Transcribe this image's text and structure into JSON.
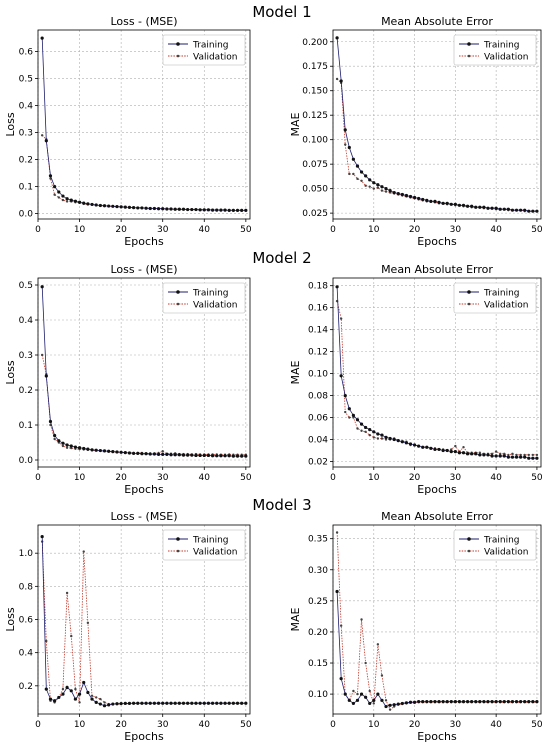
{
  "models": [
    {
      "title": "Model 1"
    },
    {
      "title": "Model 2"
    },
    {
      "title": "Model 3"
    }
  ],
  "colors": {
    "training": "#1f1f6e",
    "validation": "#c0392b"
  },
  "chart_data": [
    {
      "type": "line",
      "model": "Model 1",
      "title": "Loss - (MSE)",
      "xlabel": "Epochs",
      "ylabel": "Loss",
      "xlim": [
        0,
        51
      ],
      "ylim": [
        -0.02,
        0.68
      ],
      "xticks": [
        0,
        10,
        20,
        30,
        40,
        50
      ],
      "yticks": [
        0.0,
        0.1,
        0.2,
        0.3,
        0.4,
        0.5,
        0.6
      ],
      "ytick_decimals": 1,
      "legend": "top-right",
      "grid": true,
      "x": [
        1,
        2,
        3,
        4,
        5,
        6,
        7,
        8,
        9,
        10,
        11,
        12,
        13,
        14,
        15,
        16,
        17,
        18,
        19,
        20,
        21,
        22,
        23,
        24,
        25,
        26,
        27,
        28,
        29,
        30,
        31,
        32,
        33,
        34,
        35,
        36,
        37,
        38,
        39,
        40,
        41,
        42,
        43,
        44,
        45,
        46,
        47,
        48,
        49,
        50
      ],
      "series": [
        {
          "name": "Training",
          "values": [
            0.65,
            0.27,
            0.14,
            0.1,
            0.08,
            0.065,
            0.055,
            0.05,
            0.046,
            0.042,
            0.039,
            0.036,
            0.034,
            0.032,
            0.03,
            0.029,
            0.028,
            0.027,
            0.026,
            0.025,
            0.024,
            0.023,
            0.022,
            0.021,
            0.021,
            0.02,
            0.019,
            0.019,
            0.018,
            0.018,
            0.017,
            0.017,
            0.016,
            0.016,
            0.016,
            0.015,
            0.015,
            0.015,
            0.014,
            0.014,
            0.014,
            0.013,
            0.013,
            0.013,
            0.013,
            0.012,
            0.012,
            0.012,
            0.012,
            0.012
          ]
        },
        {
          "name": "Validation",
          "values": [
            0.29,
            0.275,
            0.13,
            0.07,
            0.06,
            0.05,
            0.045,
            0.045,
            0.042,
            0.04,
            0.036,
            0.034,
            0.033,
            0.031,
            0.03,
            0.029,
            0.027,
            0.027,
            0.026,
            0.025,
            0.024,
            0.023,
            0.022,
            0.022,
            0.021,
            0.02,
            0.02,
            0.019,
            0.019,
            0.018,
            0.018,
            0.017,
            0.017,
            0.017,
            0.016,
            0.016,
            0.016,
            0.015,
            0.015,
            0.015,
            0.015,
            0.014,
            0.014,
            0.014,
            0.014,
            0.013,
            0.013,
            0.013,
            0.013,
            0.013
          ]
        }
      ]
    },
    {
      "type": "line",
      "model": "Model 1",
      "title": "Mean Absolute Error",
      "xlabel": "Epochs",
      "ylabel": "MAE",
      "xlim": [
        0,
        51
      ],
      "ylim": [
        0.019,
        0.212
      ],
      "xticks": [
        0,
        10,
        20,
        30,
        40,
        50
      ],
      "yticks": [
        0.025,
        0.05,
        0.075,
        0.1,
        0.125,
        0.15,
        0.175,
        0.2
      ],
      "ytick_decimals": 3,
      "legend": "top-right",
      "grid": true,
      "x": [
        1,
        2,
        3,
        4,
        5,
        6,
        7,
        8,
        9,
        10,
        11,
        12,
        13,
        14,
        15,
        16,
        17,
        18,
        19,
        20,
        21,
        22,
        23,
        24,
        25,
        26,
        27,
        28,
        29,
        30,
        31,
        32,
        33,
        34,
        35,
        36,
        37,
        38,
        39,
        40,
        41,
        42,
        43,
        44,
        45,
        46,
        47,
        48,
        49,
        50
      ],
      "series": [
        {
          "name": "Training",
          "values": [
            0.204,
            0.16,
            0.11,
            0.092,
            0.08,
            0.073,
            0.067,
            0.063,
            0.059,
            0.056,
            0.054,
            0.052,
            0.05,
            0.048,
            0.046,
            0.045,
            0.044,
            0.043,
            0.042,
            0.041,
            0.04,
            0.039,
            0.038,
            0.037,
            0.037,
            0.036,
            0.035,
            0.035,
            0.034,
            0.034,
            0.033,
            0.033,
            0.032,
            0.032,
            0.031,
            0.031,
            0.031,
            0.03,
            0.03,
            0.03,
            0.029,
            0.029,
            0.029,
            0.028,
            0.028,
            0.028,
            0.028,
            0.027,
            0.027,
            0.027
          ]
        },
        {
          "name": "Validation",
          "values": [
            0.162,
            0.158,
            0.095,
            0.065,
            0.065,
            0.06,
            0.058,
            0.053,
            0.052,
            0.05,
            0.051,
            0.048,
            0.047,
            0.046,
            0.045,
            0.044,
            0.043,
            0.042,
            0.041,
            0.04,
            0.039,
            0.038,
            0.037,
            0.037,
            0.036,
            0.035,
            0.035,
            0.034,
            0.034,
            0.033,
            0.033,
            0.032,
            0.032,
            0.031,
            0.031,
            0.031,
            0.03,
            0.03,
            0.03,
            0.029,
            0.029,
            0.029,
            0.028,
            0.028,
            0.028,
            0.028,
            0.027,
            0.027,
            0.027,
            0.027
          ]
        }
      ]
    },
    {
      "type": "line",
      "model": "Model 2",
      "title": "Loss - (MSE)",
      "xlabel": "Epochs",
      "ylabel": "Loss",
      "xlim": [
        0,
        51
      ],
      "ylim": [
        -0.02,
        0.52
      ],
      "xticks": [
        0,
        10,
        20,
        30,
        40,
        50
      ],
      "yticks": [
        0.0,
        0.1,
        0.2,
        0.3,
        0.4,
        0.5
      ],
      "ytick_decimals": 1,
      "legend": "top-right",
      "grid": true,
      "x": [
        1,
        2,
        3,
        4,
        5,
        6,
        7,
        8,
        9,
        10,
        11,
        12,
        13,
        14,
        15,
        16,
        17,
        18,
        19,
        20,
        21,
        22,
        23,
        24,
        25,
        26,
        27,
        28,
        29,
        30,
        31,
        32,
        33,
        34,
        35,
        36,
        37,
        38,
        39,
        40,
        41,
        42,
        43,
        44,
        45,
        46,
        47,
        48,
        49,
        50
      ],
      "series": [
        {
          "name": "Training",
          "values": [
            0.495,
            0.24,
            0.11,
            0.07,
            0.055,
            0.048,
            0.043,
            0.04,
            0.037,
            0.035,
            0.033,
            0.031,
            0.029,
            0.028,
            0.027,
            0.026,
            0.025,
            0.024,
            0.023,
            0.022,
            0.021,
            0.02,
            0.019,
            0.019,
            0.018,
            0.018,
            0.017,
            0.017,
            0.016,
            0.016,
            0.016,
            0.015,
            0.015,
            0.015,
            0.014,
            0.014,
            0.014,
            0.013,
            0.013,
            0.013,
            0.013,
            0.012,
            0.012,
            0.012,
            0.012,
            0.012,
            0.011,
            0.011,
            0.011,
            0.011
          ]
        },
        {
          "name": "Validation",
          "values": [
            0.3,
            0.245,
            0.1,
            0.06,
            0.05,
            0.04,
            0.035,
            0.034,
            0.032,
            0.031,
            0.03,
            0.029,
            0.028,
            0.027,
            0.026,
            0.025,
            0.024,
            0.023,
            0.022,
            0.022,
            0.021,
            0.021,
            0.02,
            0.02,
            0.02,
            0.019,
            0.019,
            0.019,
            0.02,
            0.025,
            0.018,
            0.018,
            0.019,
            0.017,
            0.017,
            0.017,
            0.016,
            0.017,
            0.016,
            0.016,
            0.016,
            0.016,
            0.016,
            0.015,
            0.015,
            0.016,
            0.015,
            0.015,
            0.015,
            0.015
          ]
        }
      ]
    },
    {
      "type": "line",
      "model": "Model 2",
      "title": "Mean Absolute Error",
      "xlabel": "Epochs",
      "ylabel": "MAE",
      "xlim": [
        0,
        51
      ],
      "ylim": [
        0.015,
        0.187
      ],
      "xticks": [
        0,
        10,
        20,
        30,
        40,
        50
      ],
      "yticks": [
        0.02,
        0.04,
        0.06,
        0.08,
        0.1,
        0.12,
        0.14,
        0.16,
        0.18
      ],
      "ytick_decimals": 2,
      "legend": "top-right",
      "grid": true,
      "x": [
        1,
        2,
        3,
        4,
        5,
        6,
        7,
        8,
        9,
        10,
        11,
        12,
        13,
        14,
        15,
        16,
        17,
        18,
        19,
        20,
        21,
        22,
        23,
        24,
        25,
        26,
        27,
        28,
        29,
        30,
        31,
        32,
        33,
        34,
        35,
        36,
        37,
        38,
        39,
        40,
        41,
        42,
        43,
        44,
        45,
        46,
        47,
        48,
        49,
        50
      ],
      "series": [
        {
          "name": "Training",
          "values": [
            0.179,
            0.098,
            0.08,
            0.068,
            0.062,
            0.058,
            0.054,
            0.051,
            0.049,
            0.047,
            0.045,
            0.044,
            0.042,
            0.041,
            0.04,
            0.039,
            0.038,
            0.037,
            0.036,
            0.035,
            0.034,
            0.033,
            0.033,
            0.032,
            0.031,
            0.031,
            0.03,
            0.03,
            0.029,
            0.029,
            0.028,
            0.028,
            0.027,
            0.027,
            0.027,
            0.026,
            0.026,
            0.026,
            0.025,
            0.025,
            0.025,
            0.025,
            0.024,
            0.024,
            0.024,
            0.024,
            0.024,
            0.023,
            0.023,
            0.023
          ]
        },
        {
          "name": "Validation",
          "values": [
            0.166,
            0.15,
            0.065,
            0.06,
            0.06,
            0.05,
            0.048,
            0.047,
            0.044,
            0.042,
            0.041,
            0.041,
            0.04,
            0.04,
            0.041,
            0.039,
            0.038,
            0.038,
            0.035,
            0.035,
            0.034,
            0.033,
            0.033,
            0.032,
            0.032,
            0.031,
            0.031,
            0.03,
            0.031,
            0.034,
            0.029,
            0.033,
            0.028,
            0.028,
            0.028,
            0.028,
            0.027,
            0.027,
            0.027,
            0.029,
            0.027,
            0.027,
            0.026,
            0.027,
            0.026,
            0.026,
            0.026,
            0.026,
            0.026,
            0.026
          ]
        }
      ]
    },
    {
      "type": "line",
      "model": "Model 3",
      "title": "Loss - (MSE)",
      "xlabel": "Epochs",
      "ylabel": "Loss",
      "xlim": [
        0,
        51
      ],
      "ylim": [
        0.03,
        1.17
      ],
      "xticks": [
        0,
        10,
        20,
        30,
        40,
        50
      ],
      "yticks": [
        0.2,
        0.4,
        0.6,
        0.8,
        1.0
      ],
      "ytick_decimals": 1,
      "legend": "top-right",
      "grid": true,
      "x": [
        1,
        2,
        3,
        4,
        5,
        6,
        7,
        8,
        9,
        10,
        11,
        12,
        13,
        14,
        15,
        16,
        17,
        18,
        19,
        20,
        21,
        22,
        23,
        24,
        25,
        26,
        27,
        28,
        29,
        30,
        31,
        32,
        33,
        34,
        35,
        36,
        37,
        38,
        39,
        40,
        41,
        42,
        43,
        44,
        45,
        46,
        47,
        48,
        49,
        50
      ],
      "series": [
        {
          "name": "Training",
          "values": [
            1.1,
            0.18,
            0.12,
            0.11,
            0.13,
            0.15,
            0.19,
            0.17,
            0.12,
            0.15,
            0.22,
            0.16,
            0.12,
            0.1,
            0.09,
            0.08,
            0.085,
            0.09,
            0.092,
            0.093,
            0.094,
            0.094,
            0.095,
            0.095,
            0.095,
            0.095,
            0.095,
            0.095,
            0.095,
            0.095,
            0.095,
            0.095,
            0.095,
            0.095,
            0.095,
            0.095,
            0.095,
            0.095,
            0.095,
            0.095,
            0.095,
            0.095,
            0.095,
            0.095,
            0.095,
            0.095,
            0.095,
            0.095,
            0.095,
            0.095
          ]
        },
        {
          "name": "Validation",
          "values": [
            1.07,
            0.47,
            0.11,
            0.1,
            0.13,
            0.18,
            0.76,
            0.5,
            0.18,
            0.1,
            1.01,
            0.58,
            0.14,
            0.13,
            0.12,
            0.1,
            0.09,
            0.09,
            0.09,
            0.09,
            0.092,
            0.092,
            0.093,
            0.093,
            0.094,
            0.094,
            0.094,
            0.094,
            0.094,
            0.094,
            0.094,
            0.094,
            0.094,
            0.094,
            0.094,
            0.094,
            0.094,
            0.094,
            0.094,
            0.094,
            0.094,
            0.094,
            0.094,
            0.094,
            0.094,
            0.094,
            0.094,
            0.094,
            0.094,
            0.094
          ]
        }
      ]
    },
    {
      "type": "line",
      "model": "Model 3",
      "title": "Mean Absolute Error",
      "xlabel": "Epochs",
      "ylabel": "MAE",
      "xlim": [
        0,
        51
      ],
      "ylim": [
        0.068,
        0.372
      ],
      "xticks": [
        0,
        10,
        20,
        30,
        40,
        50
      ],
      "yticks": [
        0.1,
        0.15,
        0.2,
        0.25,
        0.3,
        0.35
      ],
      "ytick_decimals": 2,
      "legend": "top-right",
      "grid": true,
      "x": [
        1,
        2,
        3,
        4,
        5,
        6,
        7,
        8,
        9,
        10,
        11,
        12,
        13,
        14,
        15,
        16,
        17,
        18,
        19,
        20,
        21,
        22,
        23,
        24,
        25,
        26,
        27,
        28,
        29,
        30,
        31,
        32,
        33,
        34,
        35,
        36,
        37,
        38,
        39,
        40,
        41,
        42,
        43,
        44,
        45,
        46,
        47,
        48,
        49,
        50
      ],
      "series": [
        {
          "name": "Training",
          "values": [
            0.265,
            0.125,
            0.1,
            0.09,
            0.085,
            0.09,
            0.1,
            0.095,
            0.085,
            0.09,
            0.1,
            0.09,
            0.08,
            0.082,
            0.083,
            0.084,
            0.085,
            0.086,
            0.087,
            0.087,
            0.088,
            0.088,
            0.088,
            0.088,
            0.088,
            0.088,
            0.088,
            0.088,
            0.088,
            0.088,
            0.088,
            0.088,
            0.088,
            0.088,
            0.088,
            0.088,
            0.088,
            0.088,
            0.088,
            0.088,
            0.088,
            0.088,
            0.088,
            0.088,
            0.088,
            0.088,
            0.088,
            0.088,
            0.088,
            0.088
          ]
        },
        {
          "name": "Validation",
          "values": [
            0.36,
            0.21,
            0.1,
            0.09,
            0.105,
            0.1,
            0.22,
            0.15,
            0.105,
            0.085,
            0.18,
            0.13,
            0.09,
            0.075,
            0.08,
            0.083,
            0.084,
            0.085,
            0.086,
            0.086,
            0.087,
            0.087,
            0.087,
            0.087,
            0.087,
            0.087,
            0.087,
            0.087,
            0.087,
            0.087,
            0.087,
            0.087,
            0.087,
            0.087,
            0.087,
            0.087,
            0.087,
            0.087,
            0.087,
            0.087,
            0.087,
            0.087,
            0.087,
            0.087,
            0.087,
            0.087,
            0.087,
            0.087,
            0.087,
            0.087
          ]
        }
      ]
    }
  ]
}
